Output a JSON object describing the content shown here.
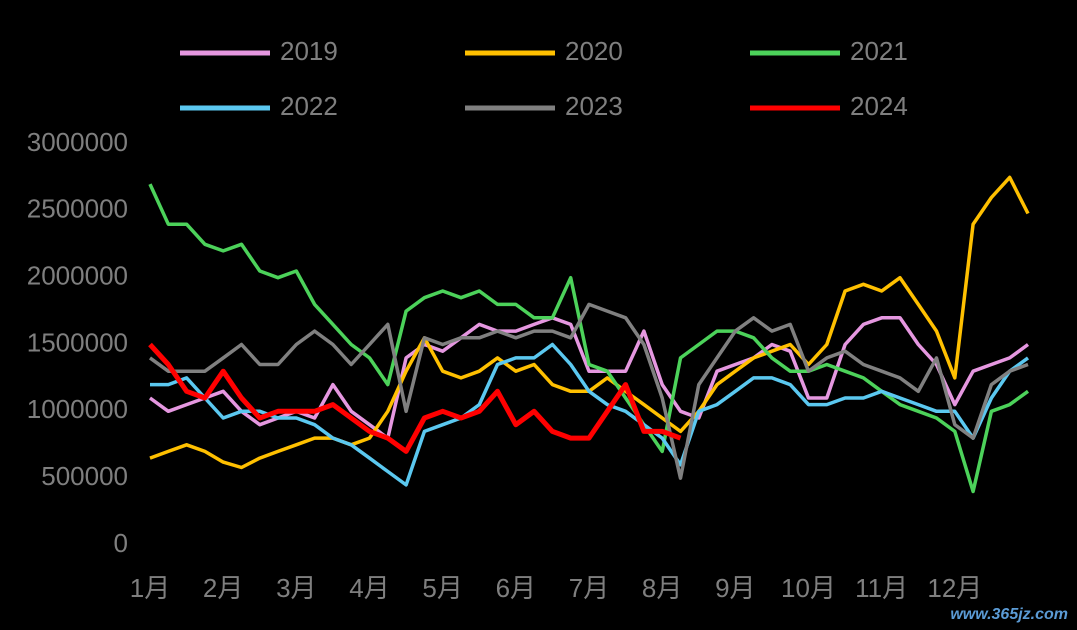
{
  "chart_data": {
    "type": "line",
    "categories": [
      "1月",
      null,
      null,
      null,
      "2月",
      null,
      null,
      null,
      "3月",
      null,
      null,
      null,
      "4月",
      null,
      null,
      null,
      "5月",
      null,
      null,
      null,
      "6月",
      null,
      null,
      null,
      "7月",
      null,
      null,
      null,
      "8月",
      null,
      null,
      null,
      "9月",
      null,
      null,
      null,
      "10月",
      null,
      null,
      null,
      "11月",
      null,
      null,
      null,
      "12月",
      null,
      null,
      null,
      null
    ],
    "ylim": [
      0,
      3000000
    ],
    "yticks": [
      0,
      500000,
      1000000,
      1500000,
      2000000,
      2500000,
      3000000
    ],
    "legend": "top",
    "series": [
      {
        "name": "2019",
        "color": "#e597e0",
        "values": [
          1100000,
          1000000,
          1050000,
          1100000,
          1150000,
          1000000,
          900000,
          950000,
          1000000,
          950000,
          1200000,
          1000000,
          900000,
          800000,
          1400000,
          1500000,
          1450000,
          1550000,
          1650000,
          1600000,
          1600000,
          1650000,
          1700000,
          1650000,
          1300000,
          1300000,
          1300000,
          1600000,
          1200000,
          1000000,
          950000,
          1300000,
          1350000,
          1400000,
          1500000,
          1450000,
          1100000,
          1100000,
          1500000,
          1650000,
          1700000,
          1700000,
          1500000,
          1350000,
          1050000,
          1300000,
          1350000,
          1400000,
          1500000
        ]
      },
      {
        "name": "2020",
        "color": "#ffc000",
        "values": [
          650000,
          700000,
          750000,
          700000,
          620000,
          580000,
          650000,
          700000,
          750000,
          800000,
          800000,
          750000,
          800000,
          1000000,
          1300000,
          1550000,
          1300000,
          1250000,
          1300000,
          1400000,
          1300000,
          1350000,
          1200000,
          1150000,
          1150000,
          1250000,
          1150000,
          1050000,
          950000,
          850000,
          1000000,
          1200000,
          1300000,
          1400000,
          1450000,
          1500000,
          1350000,
          1500000,
          1900000,
          1950000,
          1900000,
          2000000,
          1800000,
          1600000,
          1250000,
          2400000,
          2600000,
          2750000,
          2480000
        ]
      },
      {
        "name": "2021",
        "color": "#4cd25a",
        "values": [
          2700000,
          2400000,
          2400000,
          2250000,
          2200000,
          2250000,
          2050000,
          2000000,
          2050000,
          1800000,
          1650000,
          1500000,
          1400000,
          1200000,
          1750000,
          1850000,
          1900000,
          1850000,
          1900000,
          1800000,
          1800000,
          1700000,
          1700000,
          2000000,
          1350000,
          1300000,
          1100000,
          900000,
          700000,
          1400000,
          1500000,
          1600000,
          1600000,
          1550000,
          1400000,
          1300000,
          1300000,
          1350000,
          1300000,
          1250000,
          1150000,
          1050000,
          1000000,
          950000,
          850000,
          400000,
          1000000,
          1050000,
          1150000
        ]
      },
      {
        "name": "2022",
        "color": "#5bc8f0",
        "values": [
          1200000,
          1200000,
          1250000,
          1100000,
          950000,
          1000000,
          1000000,
          950000,
          950000,
          900000,
          800000,
          750000,
          650000,
          550000,
          450000,
          850000,
          900000,
          950000,
          1050000,
          1350000,
          1400000,
          1400000,
          1500000,
          1350000,
          1150000,
          1050000,
          1000000,
          900000,
          800000,
          600000,
          1000000,
          1050000,
          1150000,
          1250000,
          1250000,
          1200000,
          1050000,
          1050000,
          1100000,
          1100000,
          1150000,
          1100000,
          1050000,
          1000000,
          1000000,
          800000,
          1100000,
          1300000,
          1400000
        ]
      },
      {
        "name": "2023",
        "color": "#808080",
        "values": [
          1400000,
          1300000,
          1300000,
          1300000,
          1400000,
          1500000,
          1350000,
          1350000,
          1500000,
          1600000,
          1500000,
          1350000,
          1500000,
          1650000,
          1000000,
          1550000,
          1500000,
          1550000,
          1550000,
          1600000,
          1550000,
          1600000,
          1600000,
          1550000,
          1800000,
          1750000,
          1700000,
          1500000,
          1100000,
          500000,
          1200000,
          1400000,
          1600000,
          1700000,
          1600000,
          1650000,
          1300000,
          1400000,
          1450000,
          1350000,
          1300000,
          1250000,
          1150000,
          1400000,
          900000,
          800000,
          1200000,
          1300000,
          1350000
        ]
      },
      {
        "name": "2024",
        "color": "#ff0000",
        "values": [
          1500000,
          1350000,
          1150000,
          1100000,
          1300000,
          1100000,
          950000,
          1000000,
          1000000,
          1000000,
          1050000,
          950000,
          850000,
          800000,
          700000,
          950000,
          1000000,
          950000,
          1000000,
          1150000,
          900000,
          1000000,
          850000,
          800000,
          800000,
          1000000,
          1200000,
          850000,
          850000,
          800000,
          null,
          null,
          null,
          null,
          null,
          null,
          null,
          null,
          null,
          null,
          null,
          null,
          null,
          null,
          null,
          null,
          null,
          null,
          null
        ]
      }
    ]
  },
  "watermark": "www.365jz.com"
}
